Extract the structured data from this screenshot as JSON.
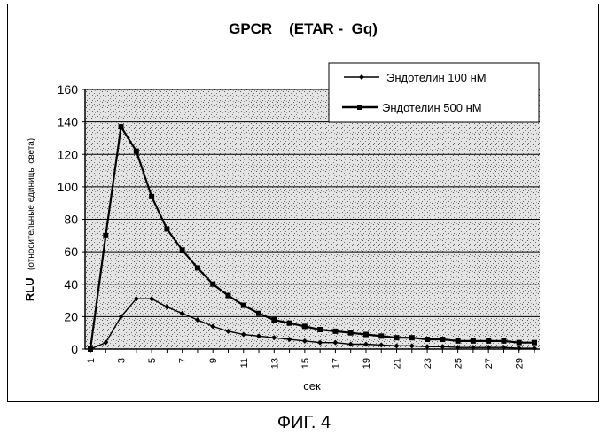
{
  "chart_data": {
    "type": "line",
    "title": "GPCR    (ETAR -  Gq)",
    "xlabel": "сек",
    "ylabel": "RLU",
    "ylabel_sub": "(относительные единицы света)",
    "ylim": [
      0,
      160
    ],
    "yticks": [
      0,
      20,
      40,
      60,
      80,
      100,
      120,
      140,
      160
    ],
    "x": [
      1,
      2,
      3,
      4,
      5,
      6,
      7,
      8,
      9,
      10,
      11,
      12,
      13,
      14,
      15,
      16,
      17,
      18,
      19,
      20,
      21,
      22,
      23,
      24,
      25,
      26,
      27,
      28,
      29,
      30
    ],
    "xtick_labels": [
      "1",
      "3",
      "5",
      "7",
      "9",
      "11",
      "13",
      "15",
      "17",
      "19",
      "21",
      "23",
      "25",
      "27",
      "29"
    ],
    "grid": true,
    "legend_position": "top-right",
    "series": [
      {
        "name": "Эндотелин 100 нМ",
        "marker": "diamond",
        "values": [
          0,
          4,
          20,
          31,
          31,
          26,
          22,
          18,
          14,
          11,
          9,
          8,
          7,
          6,
          5,
          4,
          4,
          3,
          3,
          2.5,
          2,
          2,
          1.5,
          1.5,
          1,
          1,
          1,
          1,
          0.5,
          0.5
        ]
      },
      {
        "name": "Эндотелин 500 нМ",
        "marker": "square",
        "values": [
          0,
          70,
          137,
          122,
          94,
          74,
          61,
          50,
          40,
          33,
          27,
          22,
          18,
          16,
          14,
          12,
          11,
          10,
          9,
          8,
          7,
          7,
          6,
          6,
          5,
          5,
          5,
          5,
          4,
          4
        ]
      }
    ]
  },
  "caption": "ФИГ. 4"
}
